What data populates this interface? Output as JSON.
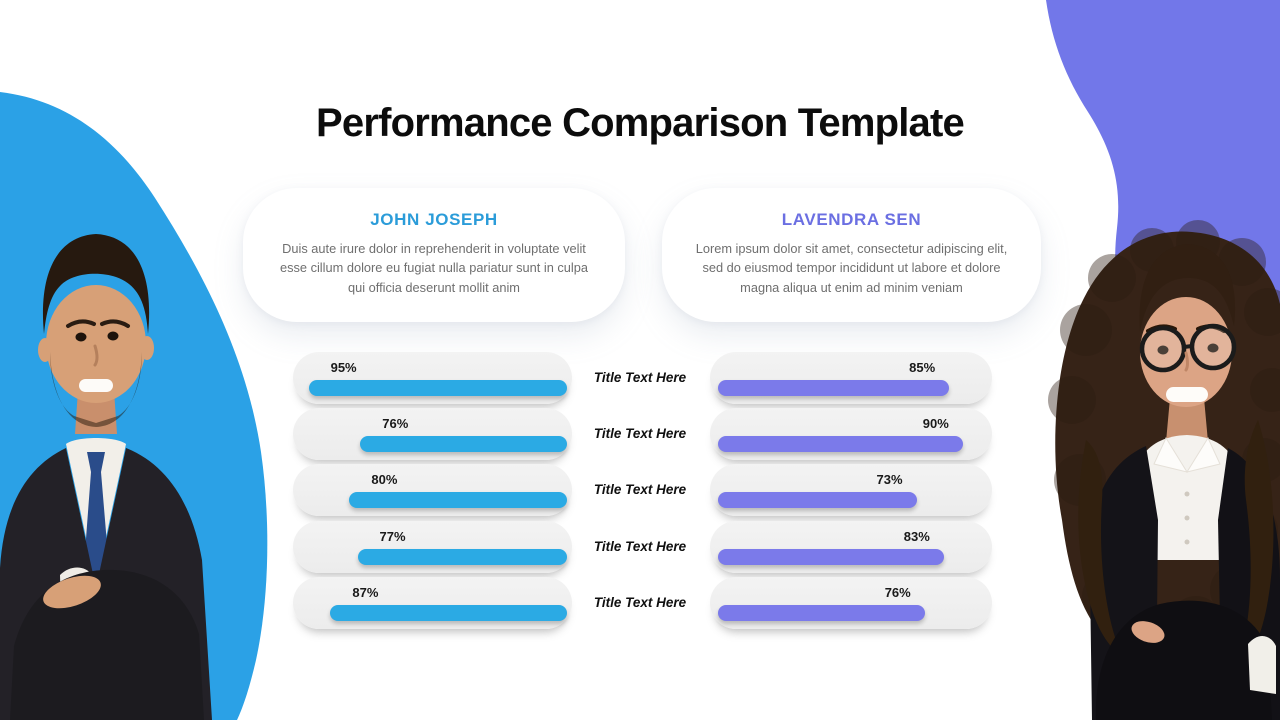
{
  "slide": {
    "title": "Performance Comparison Template"
  },
  "people": [
    {
      "name": "JOHN JOSEPH",
      "accent_color": "#2B9CD9",
      "bar_color": "#2BAAE4",
      "description": "Duis aute irure dolor in reprehenderit in voluptate velit esse cillum dolore eu fugiat nulla pariatur sunt in culpa qui officia deserunt mollit anim"
    },
    {
      "name": "LAVENDRA SEN",
      "accent_color": "#6B6FE2",
      "bar_color": "#7B7AEA",
      "description": "Lorem ipsum dolor sit amet, consectetur adipiscing elit, sed do eiusmod tempor incididunt ut labore et dolore magna aliqua ut enim ad minim veniam"
    }
  ],
  "chart_data": {
    "type": "bar",
    "orientation": "horizontal",
    "unit": "%",
    "value_range": [
      0,
      100
    ],
    "categories": [
      "Title Text Here",
      "Title Text Here",
      "Title Text Here",
      "Title Text Here",
      "Title Text Here"
    ],
    "series": [
      {
        "name": "John Joseph",
        "color": "#2BAAE4",
        "bars_grow": "leftward",
        "values": [
          95,
          76,
          80,
          77,
          87
        ]
      },
      {
        "name": "Lavendra Sen",
        "color": "#7B7AEA",
        "bars_grow": "rightward",
        "values": [
          85,
          90,
          73,
          83,
          76
        ]
      }
    ],
    "grid": false,
    "legend": false
  },
  "background": {
    "left_blob_color": "#2BA1E6",
    "right_blob_color": "#7277E9"
  }
}
